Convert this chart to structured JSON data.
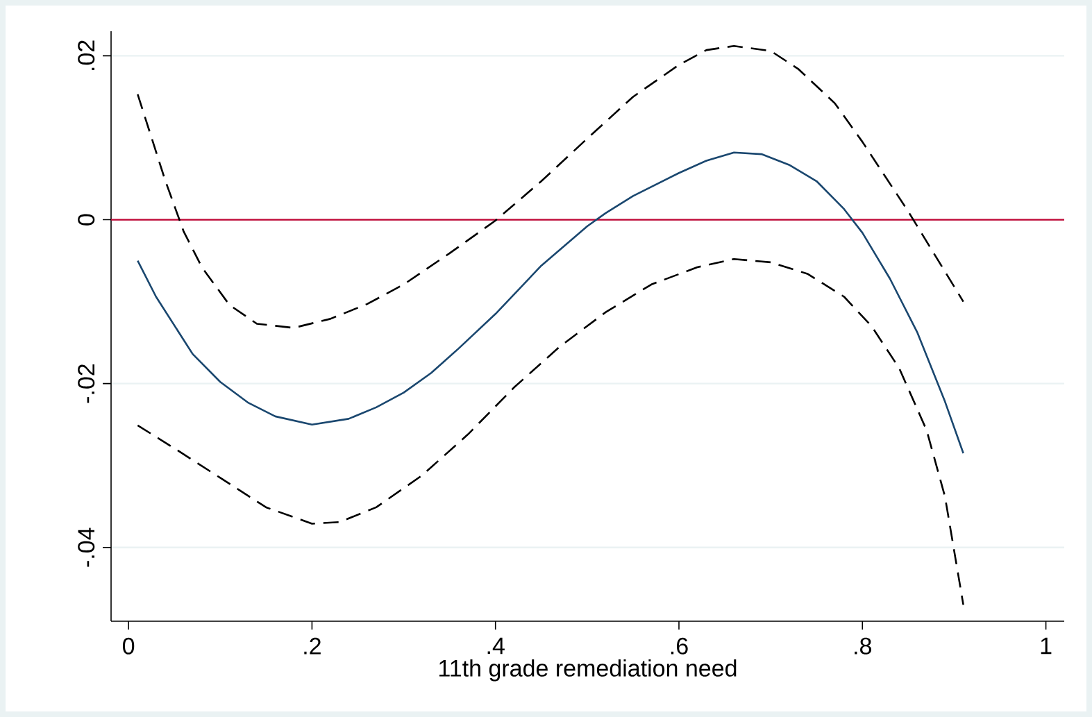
{
  "chart_data": {
    "type": "line",
    "xlabel": "11th grade remediation need",
    "xlim": [
      -0.019,
      1.02
    ],
    "ylim": [
      -0.049,
      0.023
    ],
    "xticks": [
      {
        "value": 0,
        "label": "0"
      },
      {
        "value": 0.2,
        "label": ".2"
      },
      {
        "value": 0.4,
        "label": ".4"
      },
      {
        "value": 0.6,
        "label": ".6"
      },
      {
        "value": 0.8,
        "label": ".8"
      },
      {
        "value": 1,
        "label": "1"
      }
    ],
    "yticks": [
      {
        "value": -0.04,
        "label": "-.04"
      },
      {
        "value": -0.02,
        "label": "-.02"
      },
      {
        "value": 0,
        "label": "0"
      },
      {
        "value": 0.02,
        "label": ".02"
      }
    ],
    "grid": "y",
    "ref_lines": [
      {
        "axis": "y",
        "value": 0,
        "color": "#c10534"
      }
    ],
    "series": [
      {
        "color": "#1a476f",
        "line_style": "solid",
        "x": [
          0.01,
          0.03,
          0.07,
          0.1,
          0.13,
          0.16,
          0.2,
          0.24,
          0.27,
          0.3,
          0.33,
          0.36,
          0.4,
          0.45,
          0.5,
          0.52,
          0.55,
          0.6,
          0.63,
          0.66,
          0.69,
          0.72,
          0.75,
          0.78,
          0.8,
          0.83,
          0.86,
          0.89,
          0.91
        ],
        "values": [
          -0.005,
          -0.0094,
          -0.0164,
          -0.0198,
          -0.0223,
          -0.024,
          -0.025,
          -0.0243,
          -0.0229,
          -0.0211,
          -0.0187,
          -0.0157,
          -0.0115,
          -0.0056,
          -0.0008,
          0.0008,
          0.0029,
          0.0057,
          0.0072,
          0.0082,
          0.008,
          0.0067,
          0.0047,
          0.0013,
          -0.0016,
          -0.0072,
          -0.0138,
          -0.0222,
          -0.0285
        ]
      },
      {
        "color": "#000000",
        "line_style": "dashed",
        "x": [
          0.01,
          0.04,
          0.06,
          0.08,
          0.11,
          0.14,
          0.18,
          0.22,
          0.26,
          0.3,
          0.35,
          0.4,
          0.45,
          0.5,
          0.55,
          0.6,
          0.63,
          0.66,
          0.7,
          0.73,
          0.77,
          0.8,
          0.85,
          0.88,
          0.91
        ],
        "values": [
          0.0153,
          0.0048,
          -0.0014,
          -0.0058,
          -0.0104,
          -0.0127,
          -0.0132,
          -0.0121,
          -0.0103,
          -0.0079,
          -0.0041,
          -0.0001,
          0.0047,
          0.0099,
          0.015,
          0.0189,
          0.0207,
          0.0212,
          0.0206,
          0.0184,
          0.0142,
          0.0095,
          0.001,
          -0.0045,
          -0.01
        ]
      },
      {
        "color": "#000000",
        "line_style": "dashed",
        "x": [
          0.01,
          0.05,
          0.1,
          0.15,
          0.2,
          0.23,
          0.27,
          0.32,
          0.37,
          0.42,
          0.47,
          0.52,
          0.57,
          0.62,
          0.66,
          0.7,
          0.74,
          0.78,
          0.81,
          0.84,
          0.87,
          0.89,
          0.91
        ],
        "values": [
          -0.0251,
          -0.0279,
          -0.0315,
          -0.0351,
          -0.0371,
          -0.0369,
          -0.0351,
          -0.0312,
          -0.0262,
          -0.0205,
          -0.0155,
          -0.0113,
          -0.0079,
          -0.0058,
          -0.0048,
          -0.0052,
          -0.0066,
          -0.0094,
          -0.013,
          -0.0181,
          -0.0257,
          -0.0338,
          -0.047
        ]
      }
    ]
  }
}
